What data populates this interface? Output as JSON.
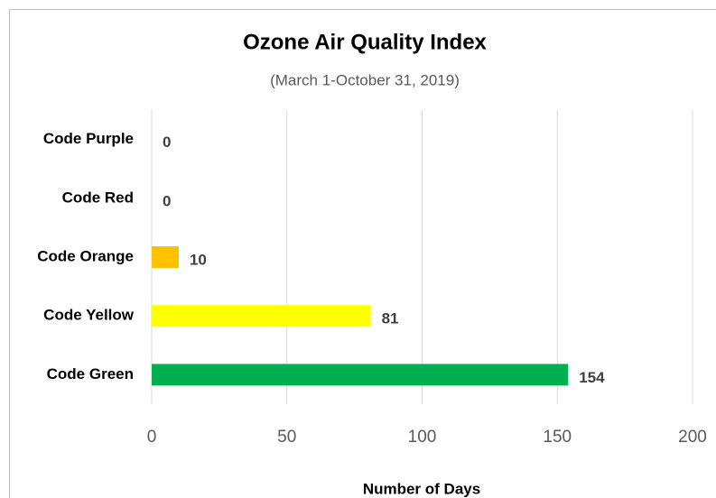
{
  "chart_data": {
    "type": "hbar",
    "title": "Ozone Air Quality Index",
    "subtitle": "(March 1-October 31, 2019)",
    "categories": [
      "Code Purple",
      "Code Red",
      "Code Orange",
      "Code Yellow",
      "Code Green"
    ],
    "values": [
      0,
      0,
      10,
      81,
      154
    ],
    "colors": [
      "#7030a0",
      "#ff0000",
      "#ffc000",
      "#ffff00",
      "#00b050"
    ],
    "xlabel": "Number of Days",
    "xlim": [
      0,
      200
    ],
    "xticks": [
      0,
      50,
      100,
      150,
      200
    ],
    "grid": true
  }
}
